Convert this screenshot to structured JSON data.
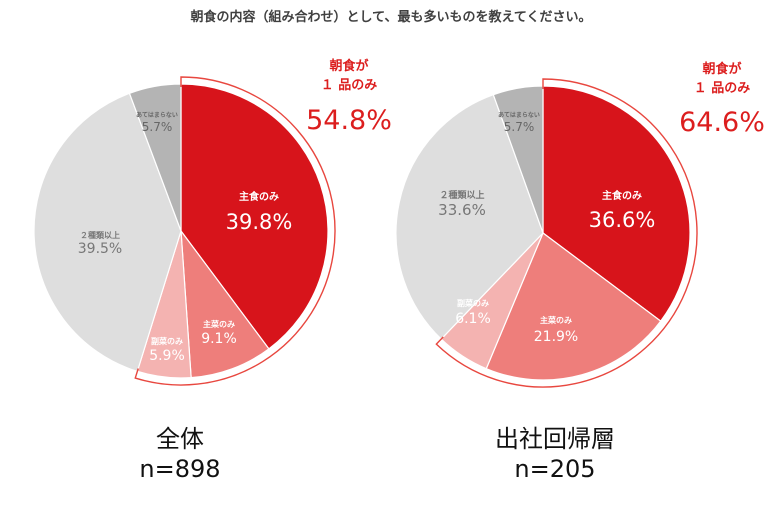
{
  "page_title": "朝食の内容（組み合わせ）として、最も多いものを教えてください。",
  "colors": {
    "main": "#d7141b",
    "side": "#ee7e7b",
    "sub": "#f4b3b1",
    "multi": "#dedede",
    "na": "#b4b4b4",
    "bracket": "#e8473f",
    "highlight_text": "#dc1e1e"
  },
  "callout": {
    "line1": "朝食が",
    "line2": "１ 品のみ"
  },
  "chart_data": [
    {
      "type": "pie",
      "title": "全体",
      "n_label": "n=898",
      "single_item_total_label": "54.8%",
      "single_item_total": 54.8,
      "slices": [
        {
          "label": "主食のみ",
          "value": 39.8,
          "value_label": "39.8%",
          "color": "#d7141b"
        },
        {
          "label": "主菜のみ",
          "value": 9.1,
          "value_label": "9.1%",
          "color": "#ee7e7b"
        },
        {
          "label": "副菜のみ",
          "value": 5.9,
          "value_label": "5.9%",
          "color": "#f4b3b1"
        },
        {
          "label": "２種類以上",
          "value": 39.5,
          "value_label": "39.5%",
          "color": "#dedede"
        },
        {
          "label": "あてはまらない",
          "value": 5.7,
          "value_label": "5.7%",
          "color": "#b4b4b4"
        }
      ]
    },
    {
      "type": "pie",
      "title": "出社回帰層",
      "n_label": "n=205",
      "single_item_total_label": "64.6%",
      "single_item_total": 64.6,
      "slices": [
        {
          "label": "主食のみ",
          "value": 36.6,
          "value_label": "36.6%",
          "color": "#d7141b"
        },
        {
          "label": "主菜のみ",
          "value": 21.9,
          "value_label": "21.9%",
          "color": "#ee7e7b"
        },
        {
          "label": "副菜のみ",
          "value": 6.1,
          "value_label": "6.1%",
          "color": "#f4b3b1"
        },
        {
          "label": "２種類以上",
          "value": 33.6,
          "value_label": "33.6%",
          "color": "#dedede"
        },
        {
          "label": "あてはまらない",
          "value": 5.7,
          "value_label": "5.7%",
          "color": "#b4b4b4"
        }
      ]
    }
  ]
}
